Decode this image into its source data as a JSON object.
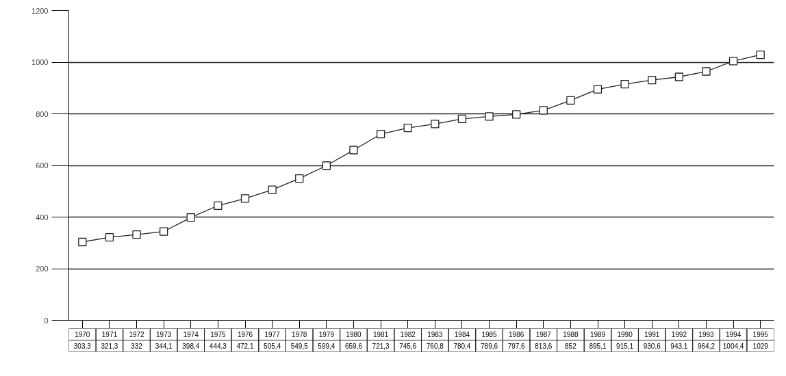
{
  "chart_data": {
    "type": "line",
    "categories": [
      "1970",
      "1971",
      "1972",
      "1973",
      "1974",
      "1975",
      "1976",
      "1977",
      "1978",
      "1979",
      "1980",
      "1981",
      "1982",
      "1983",
      "1984",
      "1985",
      "1986",
      "1987",
      "1988",
      "1989",
      "1990",
      "1991",
      "1992",
      "1993",
      "1994",
      "1995"
    ],
    "series": [
      {
        "color": "#222222",
        "values": [
          303.3,
          321.3,
          332,
          344.1,
          398.4,
          444.3,
          472.1,
          505.4,
          549.5,
          599.4,
          659.6,
          721.3,
          745.6,
          760.8,
          780.4,
          789.6,
          797.6,
          813.6,
          852,
          895.1,
          915.1,
          930.6,
          943.1,
          964.2,
          1004.4,
          1029
        ],
        "value_labels": [
          "303,3",
          "321,3",
          "332",
          "344,1",
          "398,4",
          "444,3",
          "472,1",
          "505,4",
          "549,5",
          "599,4",
          "659,6",
          "721,3",
          "745,6",
          "760,8",
          "780,4",
          "789,6",
          "797,6",
          "813,6",
          "852",
          "895,1",
          "915,1",
          "930,6",
          "943,1",
          "964,2",
          "1004,4",
          "1029"
        ]
      }
    ],
    "ylim": [
      0,
      1200
    ],
    "yticks": [
      0,
      200,
      400,
      600,
      800,
      1000,
      1200
    ],
    "grid": "y",
    "marker": "square",
    "line_style": "solid"
  }
}
